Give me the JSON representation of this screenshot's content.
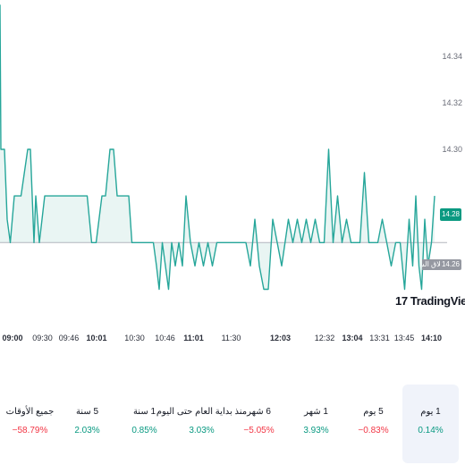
{
  "colors": {
    "line": "#26a69a",
    "area_fill": "#e9f5f3",
    "prev_close_line": "#b2b5be",
    "positive": "#089981",
    "negative": "#f23645",
    "badge": "#0b9981",
    "prev_close_badge": "#9598a1"
  },
  "chart_data": {
    "type": "line",
    "ylim": [
      14.203,
      14.364
    ],
    "xlim": [
      0,
      100
    ],
    "y_ticks": [
      "14.34",
      "14.32",
      "14.30"
    ],
    "y_tick_values": [
      14.34,
      14.32,
      14.3
    ],
    "x_ticks": [
      {
        "label": "09:00",
        "pos": 1,
        "major": true
      },
      {
        "label": "09:30",
        "pos": 9.5,
        "major": false
      },
      {
        "label": "09:46",
        "pos": 15.4,
        "major": false
      },
      {
        "label": "10:01",
        "pos": 21.6,
        "major": true
      },
      {
        "label": "10:30",
        "pos": 30.1,
        "major": false
      },
      {
        "label": "10:46",
        "pos": 36.9,
        "major": false
      },
      {
        "label": "11:01",
        "pos": 43.3,
        "major": true
      },
      {
        "label": "11:30",
        "pos": 51.7,
        "major": false
      },
      {
        "label": "12:03",
        "pos": 62.7,
        "major": true
      },
      {
        "label": "12:32",
        "pos": 72.6,
        "major": false
      },
      {
        "label": "13:04",
        "pos": 78.8,
        "major": true
      },
      {
        "label": "13:31",
        "pos": 84.9,
        "major": false
      },
      {
        "label": "13:45",
        "pos": 90.4,
        "major": false
      },
      {
        "label": "14:10",
        "pos": 96.5,
        "major": true
      }
    ],
    "prev_close": 14.26,
    "last_price": 14.28,
    "series": [
      {
        "x": [
          0,
          0.2,
          1,
          1.6,
          2.3,
          3.2,
          4,
          4.7,
          6.2,
          6.8,
          7.6,
          8,
          8.8,
          10,
          12,
          14,
          16,
          18,
          19.5,
          20.5,
          21.5,
          22.8,
          23.6,
          24.6,
          25.4,
          26.2,
          27,
          28.8,
          29.5,
          30.5,
          31.5,
          33.3,
          34.3,
          35,
          35.6,
          36.3,
          37,
          37.7,
          38.4,
          39.2,
          40,
          40.8,
          41.6,
          42.6,
          43.6,
          44.5,
          45.5,
          46.5,
          47.5,
          48.5,
          49.5,
          50.5,
          52,
          53.5,
          55,
          56,
          57,
          58,
          59,
          60,
          61,
          62,
          63,
          64.5,
          65.5,
          66.5,
          67.5,
          68.5,
          69.5,
          70.5,
          71.5,
          72.5,
          73.5,
          74.5,
          75.5,
          76.5,
          77.5,
          78.5,
          79.5,
          80.5,
          81.5,
          82.5,
          83.5,
          84.5,
          85.5,
          86.5,
          87.5,
          88.5,
          89.5,
          90.5,
          91.5,
          92.3,
          93,
          93.7,
          94.3,
          95,
          95.7,
          96.5,
          97.2
        ],
        "values": [
          14.362,
          14.3,
          14.3,
          14.27,
          14.26,
          14.28,
          14.28,
          14.28,
          14.3,
          14.3,
          14.26,
          14.28,
          14.26,
          14.28,
          14.28,
          14.28,
          14.28,
          14.28,
          14.28,
          14.26,
          14.26,
          14.28,
          14.28,
          14.3,
          14.3,
          14.28,
          14.28,
          14.28,
          14.26,
          14.26,
          14.26,
          14.26,
          14.26,
          14.25,
          14.24,
          14.26,
          14.25,
          14.24,
          14.26,
          14.25,
          14.26,
          14.25,
          14.28,
          14.26,
          14.25,
          14.26,
          14.25,
          14.26,
          14.25,
          14.26,
          14.26,
          14.26,
          14.26,
          14.26,
          14.26,
          14.25,
          14.27,
          14.25,
          14.24,
          14.24,
          14.27,
          14.26,
          14.25,
          14.27,
          14.26,
          14.27,
          14.26,
          14.27,
          14.26,
          14.27,
          14.26,
          14.26,
          14.3,
          14.26,
          14.28,
          14.26,
          14.27,
          14.26,
          14.26,
          14.26,
          14.29,
          14.26,
          14.26,
          14.26,
          14.27,
          14.26,
          14.25,
          14.26,
          14.26,
          14.24,
          14.27,
          14.25,
          14.28,
          14.25,
          14.24,
          14.27,
          14.25,
          14.26,
          14.28
        ]
      }
    ]
  },
  "axis": {
    "last_price_label": "14.28",
    "prev_close_label": "الإغلاق السابق",
    "prev_close_value": "14.26"
  },
  "logo": {
    "mark": "17",
    "name": "TradingView"
  },
  "periods": [
    {
      "label": "جميع الأوقات",
      "change": "−58.79%",
      "sign": "neg",
      "active": false
    },
    {
      "label": "5 سنة",
      "change": "2.03%",
      "sign": "pos",
      "active": false
    },
    {
      "label": "1 سنة",
      "change": "0.85%",
      "sign": "pos",
      "active": false
    },
    {
      "label": "منذ بداية العام حتى اليوم",
      "change": "3.03%",
      "sign": "pos",
      "active": false
    },
    {
      "label": "6 شهر",
      "change": "−5.05%",
      "sign": "neg",
      "active": false
    },
    {
      "label": "1 شهر",
      "change": "3.93%",
      "sign": "pos",
      "active": false
    },
    {
      "label": "5 يوم",
      "change": "−0.83%",
      "sign": "neg",
      "active": false
    },
    {
      "label": "1 يوم",
      "change": "0.14%",
      "sign": "pos",
      "active": true
    }
  ]
}
